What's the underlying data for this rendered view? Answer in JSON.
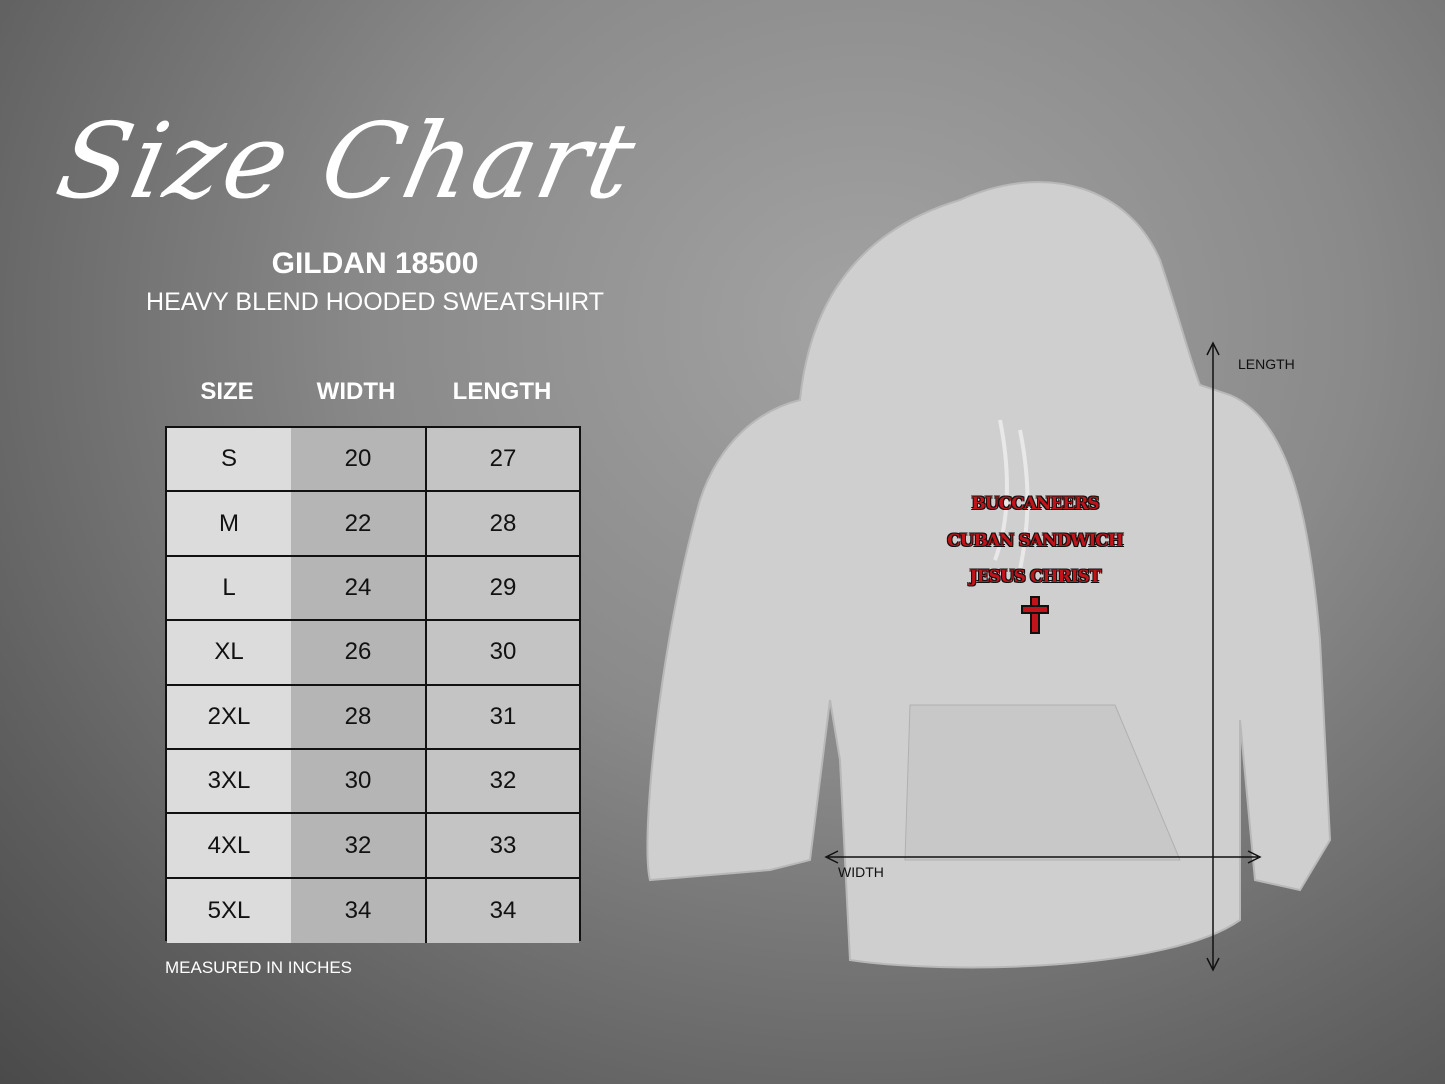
{
  "title": "Size Chart",
  "brand": "GILDAN 18500",
  "product": "HEAVY BLEND HOODED SWEATSHIRT",
  "table": {
    "headers": [
      "SIZE",
      "WIDTH",
      "LENGTH"
    ],
    "rows": [
      [
        "S",
        "20",
        "27"
      ],
      [
        "M",
        "22",
        "28"
      ],
      [
        "L",
        "24",
        "29"
      ],
      [
        "XL",
        "26",
        "30"
      ],
      [
        "2XL",
        "28",
        "31"
      ],
      [
        "3XL",
        "30",
        "32"
      ],
      [
        "4XL",
        "32",
        "33"
      ],
      [
        "5XL",
        "34",
        "34"
      ]
    ]
  },
  "note": "MEASURED IN INCHES",
  "diagram": {
    "length_label": "LENGTH",
    "width_label": "WIDTH"
  },
  "print": {
    "lines": [
      "BUCCANEERS",
      "CUBAN SANDWICH",
      "JESUS CHRIST"
    ],
    "icon": "cross-icon",
    "color": "#c0141a"
  }
}
